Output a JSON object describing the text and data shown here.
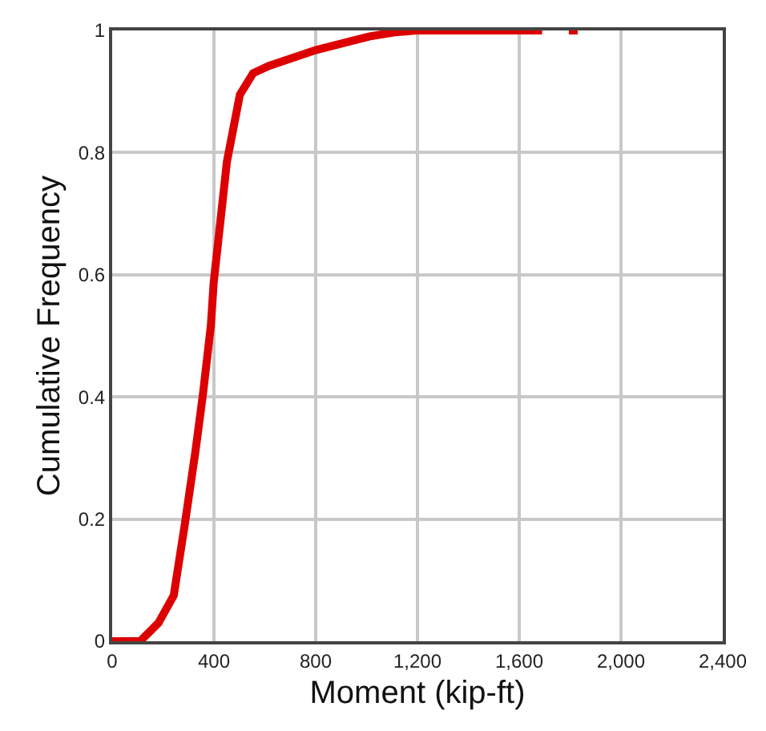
{
  "chart_data": {
    "type": "line",
    "xlabel": "Moment (kip-ft)",
    "ylabel": "Cumulative Frequency",
    "x": [
      0,
      110,
      182,
      242,
      285,
      327,
      357,
      388,
      399,
      451,
      502,
      554,
      616,
      802,
      1009,
      1110,
      1200,
      1690,
      null,
      1795,
      1830
    ],
    "series": [
      {
        "color": "#dd0000",
        "values": [
          0,
          0,
          0.03,
          0.075,
          0.19,
          0.31,
          0.405,
          0.517,
          0.587,
          0.785,
          0.895,
          0.93,
          0.942,
          0.968,
          0.99,
          0.997,
          1,
          1,
          null,
          1,
          1
        ]
      }
    ],
    "xlim": [
      0,
      2400
    ],
    "xticks": [
      0,
      400,
      800,
      {
        "value": 1200,
        "label": "1,200"
      },
      {
        "value": 1600,
        "label": "1,600"
      },
      {
        "value": 2000,
        "label": "2,000"
      },
      {
        "value": 2400,
        "label": "2,400"
      }
    ],
    "ylim": [
      0,
      1
    ],
    "yticks": [
      0,
      0.2,
      0.4,
      0.6,
      0.8,
      1
    ],
    "grid": true,
    "legend": false,
    "marker": "none",
    "line_style": "solid"
  }
}
